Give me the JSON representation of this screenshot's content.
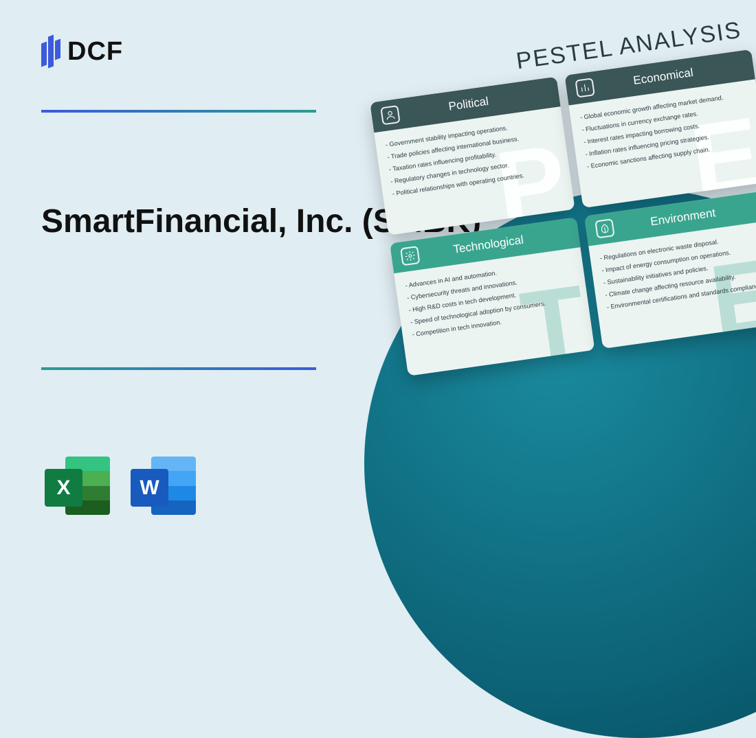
{
  "logo_text": "DCF",
  "title": "SmartFinancial, Inc. (SMBK)",
  "file_icons": {
    "excel_letter": "X",
    "word_letter": "W"
  },
  "colors": {
    "page_bg": "#e0edf3",
    "divider_start": "#3b5bdb",
    "divider_end": "#2a9d8f",
    "circle_light": "#1a8a9e",
    "circle_dark": "#084a5a",
    "card_dark_header": "#3a5656",
    "card_teal_header": "#3aa58f",
    "card_body_bg": "#ecf4f2"
  },
  "pestel": {
    "heading": "PESTEL ANALYSIS",
    "cards": [
      {
        "title": "Political",
        "variant": "dark",
        "watermark": "P",
        "icon": "person-icon",
        "items": [
          "- Government stability impacting operations.",
          "- Trade policies affecting international business.",
          "- Taxation rates influencing profitability.",
          "- Regulatory changes in technology sector.",
          "- Political relationships with operating countries."
        ]
      },
      {
        "title": "Economical",
        "variant": "dark",
        "watermark": "E",
        "icon": "chart-icon",
        "items": [
          "- Global economic growth affecting market demand.",
          "- Fluctuations in currency exchange rates.",
          "- Interest rates impacting borrowing costs.",
          "- Inflation rates influencing pricing strategies.",
          "- Economic sanctions affecting supply chain."
        ]
      },
      {
        "title": "Technological",
        "variant": "teal",
        "watermark": "T",
        "icon": "gear-icon",
        "items": [
          "- Advances in AI and automation.",
          "- Cybersecurity threats and innovations.",
          "- High R&D costs in tech development.",
          "- Speed of technological adoption by consumers.",
          "- Competition in tech innovation."
        ]
      },
      {
        "title": "Environment",
        "variant": "teal",
        "watermark": "E",
        "icon": "leaf-icon",
        "items": [
          "- Regulations on electronic waste disposal.",
          "- Impact of energy consumption on operations.",
          "- Sustainability initiatives and policies.",
          "- Climate change affecting resource availability.",
          "- Environmental certifications and standards compliance."
        ]
      }
    ]
  }
}
